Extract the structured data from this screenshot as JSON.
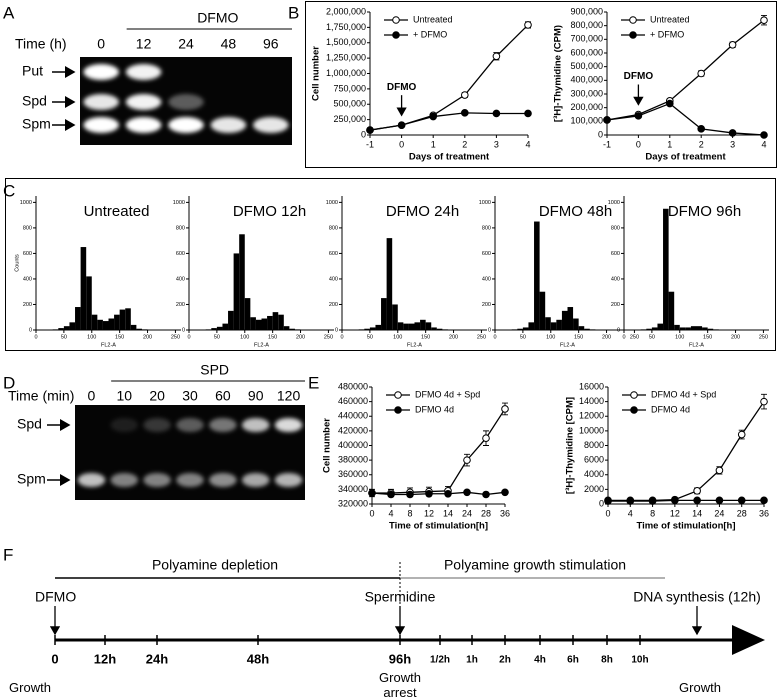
{
  "panel_labels": [
    "A",
    "B",
    "C",
    "D",
    "E",
    "F"
  ],
  "gel_a": {
    "title": "DFMO",
    "time_label": "Time (h)",
    "lanes": [
      "0",
      "12",
      "24",
      "48",
      "96"
    ],
    "bands": [
      {
        "name": "Put",
        "intensity": [
          1,
          0.95,
          0,
          0,
          0
        ]
      },
      {
        "name": "Spd",
        "intensity": [
          0.9,
          0.95,
          0.35,
          0,
          0
        ]
      },
      {
        "name": "Spm",
        "intensity": [
          1,
          1,
          1,
          0.9,
          0.9
        ]
      }
    ]
  },
  "gel_d": {
    "title": "SPD",
    "time_label": "Time (min)",
    "lanes": [
      "0",
      "10",
      "20",
      "30",
      "60",
      "90",
      "120"
    ],
    "bands": [
      {
        "name": "Spd",
        "intensity": [
          0,
          0.1,
          0.2,
          0.35,
          0.45,
          0.75,
          0.85
        ]
      },
      {
        "name": "Spm",
        "intensity": [
          0.75,
          0.5,
          0.5,
          0.5,
          0.55,
          0.65,
          0.7
        ]
      }
    ]
  },
  "chart_data": [
    {
      "type": "line",
      "y_label": "Cell number",
      "x_label": "Days of treatment",
      "x": [
        -1,
        0,
        1,
        2,
        3,
        4
      ],
      "xlim": [
        -1,
        4
      ],
      "xticks": [
        -1,
        0,
        1,
        2,
        3,
        4
      ],
      "ylim": [
        0,
        2000000
      ],
      "yticks": [
        0,
        {
          "value": 250000,
          "label": "250,000"
        },
        {
          "value": 500000,
          "label": "500,000"
        },
        {
          "value": 750000,
          "label": "750,000"
        },
        {
          "value": 1000000,
          "label": "1,000,000"
        },
        {
          "value": 1250000,
          "label": "1,250,000"
        },
        {
          "value": 1500000,
          "label": "1,500,000"
        },
        {
          "value": 1750000,
          "label": "1,750,000"
        },
        {
          "value": 2000000,
          "label": "2,000,000"
        }
      ],
      "series": [
        {
          "name": "Untreated",
          "color": "#000000",
          "marker": "open",
          "values": [
            80000,
            160000,
            320000,
            650000,
            1280000,
            1790000
          ],
          "errors": [
            10000,
            15000,
            30000,
            40000,
            60000,
            50000
          ]
        },
        {
          "name": "+ DFMO",
          "color": "#000000",
          "marker": "filled",
          "values": [
            80000,
            160000,
            300000,
            360000,
            350000,
            350000
          ]
        }
      ],
      "annotation": {
        "text": "DFMO",
        "x": 0
      },
      "legend": "upper left"
    },
    {
      "type": "line",
      "y_label": "[³H]-Thymidine (CPM)",
      "x_label": "Days of treatment",
      "x": [
        -1,
        0,
        1,
        2,
        3,
        4
      ],
      "xlim": [
        -1,
        4
      ],
      "xticks": [
        -1,
        0,
        1,
        2,
        3,
        4
      ],
      "ylim": [
        0,
        900000
      ],
      "yticks": [
        0,
        {
          "value": 100000,
          "label": "100,000"
        },
        {
          "value": 200000,
          "label": "200,000"
        },
        {
          "value": 300000,
          "label": "300,000"
        },
        {
          "value": 400000,
          "label": "400,000"
        },
        {
          "value": 500000,
          "label": "500,000"
        },
        {
          "value": 600000,
          "label": "600,000"
        },
        {
          "value": 700000,
          "label": "700,000"
        },
        {
          "value": 800000,
          "label": "800,000"
        },
        {
          "value": 900000,
          "label": "900,000"
        }
      ],
      "series": [
        {
          "name": "Untreated",
          "color": "#000000",
          "marker": "open",
          "values": [
            110000,
            150000,
            250000,
            450000,
            660000,
            840000
          ],
          "errors": [
            10000,
            10000,
            15000,
            20000,
            20000,
            35000
          ]
        },
        {
          "name": "+ DFMO",
          "color": "#000000",
          "marker": "filled",
          "values": [
            110000,
            140000,
            230000,
            45000,
            15000,
            0
          ]
        }
      ],
      "annotation": {
        "text": "DFMO",
        "x": 0
      },
      "legend": "upper left"
    },
    {
      "type": "histogram",
      "title": "Untreated",
      "x_label": "FL2-A",
      "y_label": "Counts",
      "color": "#000000",
      "bins": [
        0,
        10,
        20,
        30,
        40,
        50,
        60,
        70,
        80,
        90,
        100,
        110,
        120,
        130,
        140,
        150,
        160,
        170,
        180,
        190,
        200,
        210,
        220,
        230,
        240,
        250
      ],
      "values": [
        0,
        0,
        0,
        5,
        15,
        30,
        60,
        180,
        650,
        420,
        120,
        80,
        70,
        90,
        120,
        160,
        170,
        40,
        10,
        5,
        0,
        0,
        0,
        0,
        0
      ],
      "xlim": [
        0,
        260
      ],
      "xticks": [
        0,
        50,
        100,
        150,
        200,
        250
      ],
      "ylim": [
        0,
        1050
      ],
      "yticks": [
        0,
        200,
        400,
        600,
        800,
        1000
      ]
    },
    {
      "type": "histogram",
      "title": "DFMO 12h",
      "x_label": "FL2-A",
      "color": "#000000",
      "bins": [
        0,
        10,
        20,
        30,
        40,
        50,
        60,
        70,
        80,
        90,
        100,
        110,
        120,
        130,
        140,
        150,
        160,
        170,
        180,
        190,
        200,
        210,
        220,
        230,
        240,
        250
      ],
      "values": [
        0,
        0,
        0,
        5,
        15,
        25,
        50,
        150,
        600,
        750,
        250,
        100,
        80,
        90,
        110,
        140,
        120,
        30,
        10,
        5,
        0,
        0,
        0,
        0,
        0
      ],
      "xlim": [
        0,
        260
      ],
      "xticks": [
        0,
        50,
        100,
        150,
        200,
        250
      ],
      "ylim": [
        0,
        1050
      ],
      "yticks": [
        0,
        200,
        400,
        600,
        800,
        1000
      ]
    },
    {
      "type": "histogram",
      "title": "DFMO 24h",
      "x_label": "FL2-A",
      "color": "#000000",
      "bins": [
        0,
        10,
        20,
        30,
        40,
        50,
        60,
        70,
        80,
        90,
        100,
        110,
        120,
        130,
        140,
        150,
        160,
        170,
        180,
        190,
        200,
        210,
        220,
        230,
        240,
        250
      ],
      "values": [
        0,
        0,
        0,
        5,
        10,
        20,
        40,
        250,
        720,
        200,
        60,
        50,
        50,
        60,
        80,
        60,
        20,
        10,
        5,
        0,
        0,
        0,
        0,
        0,
        0
      ],
      "xlim": [
        0,
        260
      ],
      "xticks": [
        0,
        50,
        100,
        150,
        200,
        250
      ],
      "ylim": [
        0,
        1050
      ],
      "yticks": [
        0,
        200,
        400,
        600,
        800,
        1000
      ]
    },
    {
      "type": "histogram",
      "title": "DFMO 48h",
      "x_label": "FL2-A",
      "color": "#000000",
      "bins": [
        0,
        10,
        20,
        30,
        40,
        50,
        60,
        70,
        80,
        90,
        100,
        110,
        120,
        130,
        140,
        150,
        160,
        170,
        180,
        190,
        200,
        210,
        220,
        230,
        240,
        250
      ],
      "values": [
        0,
        0,
        0,
        5,
        10,
        20,
        60,
        850,
        300,
        100,
        60,
        80,
        150,
        180,
        90,
        30,
        10,
        5,
        0,
        0,
        0,
        0,
        0,
        0,
        0
      ],
      "xlim": [
        0,
        260
      ],
      "xticks": [
        0,
        50,
        100,
        150,
        200,
        250
      ],
      "ylim": [
        0,
        1050
      ],
      "yticks": [
        0,
        200,
        400,
        600,
        800,
        1000
      ]
    },
    {
      "type": "histogram",
      "title": "DFMO 96h",
      "x_label": "FL2-A",
      "color": "#000000",
      "bins": [
        0,
        10,
        20,
        30,
        40,
        50,
        60,
        70,
        80,
        90,
        100,
        110,
        120,
        130,
        140,
        150,
        160,
        170,
        180,
        190,
        200,
        210,
        220,
        230,
        240,
        250
      ],
      "values": [
        0,
        0,
        0,
        5,
        10,
        20,
        50,
        950,
        300,
        40,
        20,
        20,
        30,
        30,
        20,
        10,
        5,
        0,
        0,
        0,
        0,
        0,
        0,
        0,
        0
      ],
      "xlim": [
        0,
        260
      ],
      "xticks": [
        0,
        50,
        100,
        150,
        200,
        250
      ],
      "ylim": [
        0,
        1050
      ],
      "yticks": [
        0,
        200,
        400,
        600,
        800,
        1000
      ]
    },
    {
      "type": "line",
      "y_label": "Cell number",
      "x_label": "Time of stimulation[h]",
      "categories": [
        "0",
        "4",
        "8",
        "12",
        "14",
        "24",
        "28",
        "36"
      ],
      "ylim": [
        320000,
        480000
      ],
      "yticks": [
        320000,
        340000,
        360000,
        380000,
        400000,
        420000,
        440000,
        460000,
        480000
      ],
      "series": [
        {
          "name": "DFMO 4d + Spd",
          "color": "#000000",
          "marker": "open",
          "values": [
            335000,
            335000,
            336000,
            337000,
            338000,
            380000,
            410000,
            450000
          ],
          "errors": [
            5000,
            5000,
            6000,
            6000,
            6000,
            8000,
            10000,
            8000
          ]
        },
        {
          "name": "DFMO 4d",
          "color": "#000000",
          "marker": "filled",
          "values": [
            335000,
            333000,
            333000,
            334000,
            334000,
            336000,
            333000,
            336000
          ]
        }
      ],
      "legend": "upper left"
    },
    {
      "type": "line",
      "y_label": "[³H]-Thymidine [CPM]",
      "x_label": "Time of stimulation[h]",
      "categories": [
        "0",
        "4",
        "8",
        "12",
        "14",
        "24",
        "28",
        "36"
      ],
      "ylim": [
        0,
        16000
      ],
      "yticks": [
        0,
        2000,
        4000,
        6000,
        8000,
        10000,
        12000,
        14000,
        16000
      ],
      "series": [
        {
          "name": "DFMO 4d + Spd",
          "color": "#000000",
          "marker": "open",
          "values": [
            500,
            500,
            500,
            600,
            1800,
            4600,
            9500,
            14000
          ],
          "errors": [
            100,
            100,
            100,
            150,
            400,
            500,
            600,
            1000
          ]
        },
        {
          "name": "DFMO 4d",
          "color": "#000000",
          "marker": "filled",
          "values": [
            400,
            400,
            400,
            500,
            500,
            500,
            500,
            500
          ]
        }
      ],
      "legend": "upper left"
    }
  ],
  "timeline": {
    "phases": [
      "Polyamine depletion",
      "Polyamine growth stimulation"
    ],
    "events": [
      "DFMO",
      "Spermidine",
      "DNA synthesis (12h)"
    ],
    "ticks": [
      "0",
      "12h",
      "24h",
      "48h",
      "96h",
      "1/2h",
      "1h",
      "2h",
      "4h",
      "6h",
      "8h",
      "10h"
    ],
    "states": [
      "Growth",
      "Growth arrest",
      "Growth"
    ]
  }
}
